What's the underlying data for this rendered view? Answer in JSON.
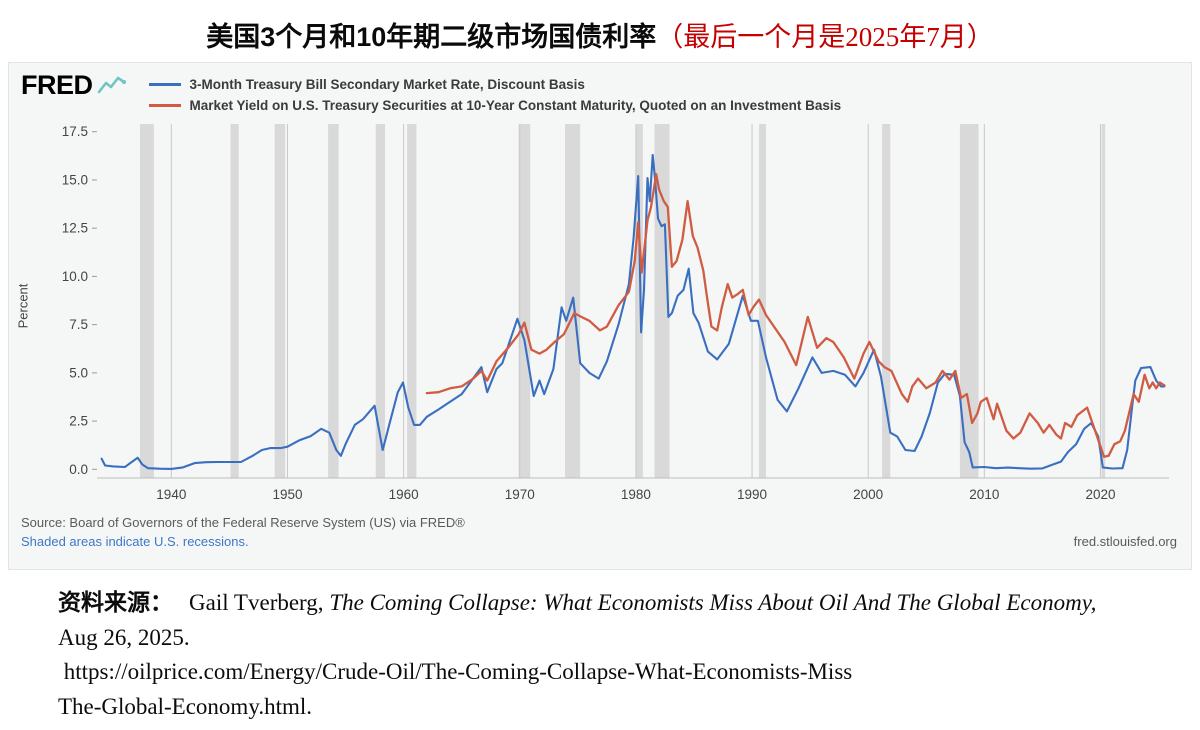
{
  "page_title": {
    "main": "美国3个月和10年期二级市场国债利率",
    "note": "（最后一个月是2025年7月）"
  },
  "fred": {
    "logo_text": "FRED",
    "footer_source": "Source: Board of Governors of the Federal Reserve System (US) via FRED®",
    "footer_recessions": "Shaded areas indicate U.S. recessions.",
    "footer_site": "fred.stlouisfed.org"
  },
  "chart_data": {
    "type": "line",
    "title": "",
    "xlabel": "",
    "ylabel": "Percent",
    "xlim": [
      1933.6,
      2025.9
    ],
    "ylim": [
      -0.45,
      17.9
    ],
    "x_ticks": [
      1940,
      1950,
      1960,
      1970,
      1980,
      1990,
      2000,
      2010,
      2020
    ],
    "y_ticks": [
      "0.0",
      "2.5",
      "5.0",
      "7.5",
      "10.0",
      "12.5",
      "15.0",
      "17.5"
    ],
    "legend_position": "top",
    "grid": "vertical-only",
    "colors": {
      "grid": "#c9c9c9",
      "recession": "#d9d9d9",
      "axis_text": "#444444"
    },
    "recessions": [
      [
        1937.3,
        1938.5
      ],
      [
        1945.1,
        1945.8
      ],
      [
        1948.9,
        1949.8
      ],
      [
        1953.5,
        1954.4
      ],
      [
        1957.6,
        1958.4
      ],
      [
        1960.3,
        1961.1
      ],
      [
        1969.9,
        1970.9
      ],
      [
        1973.9,
        1975.2
      ],
      [
        1980.0,
        1980.6
      ],
      [
        1981.6,
        1982.9
      ],
      [
        1990.6,
        1991.2
      ],
      [
        2001.2,
        2001.9
      ],
      [
        2007.9,
        2009.5
      ],
      [
        2020.1,
        2020.4
      ]
    ],
    "series": [
      {
        "name": "3-Month Treasury Bill Secondary Market Rate, Discount Basis",
        "color": "#3a6fc0",
        "width": 2.1,
        "points": [
          [
            1934,
            0.55
          ],
          [
            1934.3,
            0.2
          ],
          [
            1935,
            0.15
          ],
          [
            1936,
            0.12
          ],
          [
            1937.1,
            0.6
          ],
          [
            1937.5,
            0.25
          ],
          [
            1938,
            0.06
          ],
          [
            1939,
            0.03
          ],
          [
            1940,
            0.02
          ],
          [
            1941,
            0.1
          ],
          [
            1942,
            0.32
          ],
          [
            1943,
            0.37
          ],
          [
            1944,
            0.38
          ],
          [
            1945,
            0.38
          ],
          [
            1946,
            0.38
          ],
          [
            1947,
            0.7
          ],
          [
            1947.8,
            1.0
          ],
          [
            1948.5,
            1.1
          ],
          [
            1949.4,
            1.1
          ],
          [
            1950,
            1.17
          ],
          [
            1951,
            1.5
          ],
          [
            1952,
            1.72
          ],
          [
            1952.9,
            2.1
          ],
          [
            1953.6,
            1.9
          ],
          [
            1954.2,
            1.0
          ],
          [
            1954.6,
            0.7
          ],
          [
            1955,
            1.3
          ],
          [
            1955.8,
            2.3
          ],
          [
            1956.5,
            2.6
          ],
          [
            1957.5,
            3.3
          ],
          [
            1958.2,
            1.0
          ],
          [
            1958.8,
            2.4
          ],
          [
            1959.5,
            4.0
          ],
          [
            1959.95,
            4.5
          ],
          [
            1960.4,
            3.2
          ],
          [
            1960.9,
            2.3
          ],
          [
            1961.4,
            2.3
          ],
          [
            1962,
            2.72
          ],
          [
            1963,
            3.1
          ],
          [
            1964,
            3.5
          ],
          [
            1965,
            3.9
          ],
          [
            1966.7,
            5.3
          ],
          [
            1967.2,
            4.0
          ],
          [
            1968,
            5.2
          ],
          [
            1968.5,
            5.5
          ],
          [
            1969.8,
            7.8
          ],
          [
            1970.4,
            6.7
          ],
          [
            1971.2,
            3.8
          ],
          [
            1971.7,
            4.6
          ],
          [
            1972.1,
            3.9
          ],
          [
            1972.9,
            5.2
          ],
          [
            1973.6,
            8.4
          ],
          [
            1974,
            7.7
          ],
          [
            1974.6,
            8.9
          ],
          [
            1975.2,
            5.5
          ],
          [
            1976,
            5.0
          ],
          [
            1976.8,
            4.7
          ],
          [
            1977.5,
            5.6
          ],
          [
            1978.5,
            7.5
          ],
          [
            1979.4,
            9.6
          ],
          [
            1979.8,
            12.0
          ],
          [
            1980.2,
            15.2
          ],
          [
            1980.45,
            7.1
          ],
          [
            1980.7,
            9.3
          ],
          [
            1981,
            15.1
          ],
          [
            1981.2,
            13.9
          ],
          [
            1981.45,
            16.3
          ],
          [
            1981.65,
            15.0
          ],
          [
            1981.9,
            13.0
          ],
          [
            1982.2,
            12.6
          ],
          [
            1982.5,
            12.7
          ],
          [
            1982.8,
            7.9
          ],
          [
            1983.1,
            8.1
          ],
          [
            1983.6,
            9.0
          ],
          [
            1984.1,
            9.3
          ],
          [
            1984.55,
            10.4
          ],
          [
            1984.95,
            8.1
          ],
          [
            1985.4,
            7.6
          ],
          [
            1986.2,
            6.1
          ],
          [
            1987,
            5.7
          ],
          [
            1988,
            6.5
          ],
          [
            1989.2,
            9.0
          ],
          [
            1989.9,
            7.7
          ],
          [
            1990.5,
            7.7
          ],
          [
            1991.2,
            5.8
          ],
          [
            1992.2,
            3.6
          ],
          [
            1993,
            3.0
          ],
          [
            1994,
            4.2
          ],
          [
            1995.2,
            5.8
          ],
          [
            1996,
            5.0
          ],
          [
            1997,
            5.1
          ],
          [
            1998,
            4.9
          ],
          [
            1998.9,
            4.3
          ],
          [
            1999.6,
            5.0
          ],
          [
            2000.5,
            6.2
          ],
          [
            2001.1,
            4.8
          ],
          [
            2001.9,
            1.9
          ],
          [
            2002.5,
            1.7
          ],
          [
            2003.2,
            1.0
          ],
          [
            2004,
            0.95
          ],
          [
            2004.6,
            1.7
          ],
          [
            2005.3,
            2.9
          ],
          [
            2006,
            4.5
          ],
          [
            2006.6,
            4.95
          ],
          [
            2007.4,
            4.9
          ],
          [
            2007.9,
            3.8
          ],
          [
            2008.3,
            1.4
          ],
          [
            2008.7,
            0.9
          ],
          [
            2009,
            0.1
          ],
          [
            2010,
            0.12
          ],
          [
            2011,
            0.06
          ],
          [
            2012,
            0.09
          ],
          [
            2013,
            0.06
          ],
          [
            2014,
            0.03
          ],
          [
            2015,
            0.05
          ],
          [
            2015.9,
            0.25
          ],
          [
            2016.6,
            0.4
          ],
          [
            2017.2,
            0.9
          ],
          [
            2017.9,
            1.3
          ],
          [
            2018.6,
            2.1
          ],
          [
            2019.2,
            2.4
          ],
          [
            2019.8,
            1.7
          ],
          [
            2020.2,
            0.1
          ],
          [
            2021,
            0.04
          ],
          [
            2021.9,
            0.06
          ],
          [
            2022.3,
            1.0
          ],
          [
            2022.7,
            3.1
          ],
          [
            2023,
            4.6
          ],
          [
            2023.5,
            5.25
          ],
          [
            2024.3,
            5.3
          ],
          [
            2024.8,
            4.6
          ],
          [
            2025.2,
            4.3
          ],
          [
            2025.5,
            4.3
          ]
        ]
      },
      {
        "name": "Market Yield on U.S. Treasury Securities at 10-Year Constant Maturity, Quoted on an Investment Basis",
        "color": "#d05c43",
        "width": 2.3,
        "points": [
          [
            1962,
            3.95
          ],
          [
            1963,
            4.0
          ],
          [
            1964,
            4.2
          ],
          [
            1965,
            4.3
          ],
          [
            1966,
            4.7
          ],
          [
            1966.7,
            5.1
          ],
          [
            1967.2,
            4.6
          ],
          [
            1968,
            5.6
          ],
          [
            1969,
            6.3
          ],
          [
            1969.9,
            7.0
          ],
          [
            1970.4,
            7.6
          ],
          [
            1971,
            6.2
          ],
          [
            1971.7,
            6.0
          ],
          [
            1972.3,
            6.2
          ],
          [
            1973,
            6.6
          ],
          [
            1973.8,
            7.0
          ],
          [
            1974.7,
            8.1
          ],
          [
            1975.3,
            7.9
          ],
          [
            1976,
            7.7
          ],
          [
            1976.9,
            7.2
          ],
          [
            1977.5,
            7.4
          ],
          [
            1978.5,
            8.5
          ],
          [
            1979.4,
            9.2
          ],
          [
            1979.9,
            10.8
          ],
          [
            1980.2,
            12.8
          ],
          [
            1980.5,
            10.2
          ],
          [
            1981,
            12.9
          ],
          [
            1981.3,
            13.6
          ],
          [
            1981.75,
            15.3
          ],
          [
            1982,
            14.5
          ],
          [
            1982.4,
            13.9
          ],
          [
            1982.75,
            13.6
          ],
          [
            1983.1,
            10.5
          ],
          [
            1983.5,
            10.8
          ],
          [
            1984,
            11.9
          ],
          [
            1984.45,
            13.9
          ],
          [
            1984.9,
            12.1
          ],
          [
            1985.3,
            11.5
          ],
          [
            1985.8,
            10.3
          ],
          [
            1986.1,
            9.0
          ],
          [
            1986.5,
            7.4
          ],
          [
            1987,
            7.2
          ],
          [
            1987.4,
            8.4
          ],
          [
            1987.9,
            9.6
          ],
          [
            1988.3,
            8.9
          ],
          [
            1988.8,
            9.1
          ],
          [
            1989.2,
            9.3
          ],
          [
            1989.7,
            8.0
          ],
          [
            1990.1,
            8.4
          ],
          [
            1990.6,
            8.8
          ],
          [
            1991.2,
            8.0
          ],
          [
            1992,
            7.3
          ],
          [
            1992.8,
            6.6
          ],
          [
            1993.8,
            5.4
          ],
          [
            1994.8,
            7.9
          ],
          [
            1995.6,
            6.3
          ],
          [
            1996.4,
            6.8
          ],
          [
            1997,
            6.6
          ],
          [
            1997.9,
            5.8
          ],
          [
            1998.8,
            4.7
          ],
          [
            1999.6,
            6.0
          ],
          [
            2000.1,
            6.6
          ],
          [
            2000.9,
            5.6
          ],
          [
            2001.4,
            5.3
          ],
          [
            2002,
            5.1
          ],
          [
            2002.9,
            3.9
          ],
          [
            2003.4,
            3.5
          ],
          [
            2003.8,
            4.3
          ],
          [
            2004.3,
            4.7
          ],
          [
            2005,
            4.2
          ],
          [
            2005.8,
            4.5
          ],
          [
            2006.4,
            5.1
          ],
          [
            2007,
            4.65
          ],
          [
            2007.5,
            5.1
          ],
          [
            2008,
            3.7
          ],
          [
            2008.5,
            3.9
          ],
          [
            2008.95,
            2.4
          ],
          [
            2009.4,
            2.9
          ],
          [
            2009.7,
            3.5
          ],
          [
            2010.2,
            3.7
          ],
          [
            2010.8,
            2.6
          ],
          [
            2011.1,
            3.4
          ],
          [
            2011.9,
            2.0
          ],
          [
            2012.5,
            1.6
          ],
          [
            2013.1,
            1.9
          ],
          [
            2013.9,
            2.9
          ],
          [
            2014.6,
            2.4
          ],
          [
            2015.1,
            1.9
          ],
          [
            2015.6,
            2.3
          ],
          [
            2016.2,
            1.8
          ],
          [
            2016.6,
            1.6
          ],
          [
            2016.95,
            2.4
          ],
          [
            2017.5,
            2.2
          ],
          [
            2018,
            2.8
          ],
          [
            2018.85,
            3.2
          ],
          [
            2019.6,
            1.9
          ],
          [
            2020.3,
            0.65
          ],
          [
            2020.7,
            0.7
          ],
          [
            2021.2,
            1.3
          ],
          [
            2021.7,
            1.45
          ],
          [
            2022.1,
            2.0
          ],
          [
            2022.5,
            3.0
          ],
          [
            2022.85,
            3.9
          ],
          [
            2023.3,
            3.5
          ],
          [
            2023.8,
            4.9
          ],
          [
            2024.2,
            4.2
          ],
          [
            2024.5,
            4.5
          ],
          [
            2024.8,
            4.2
          ],
          [
            2025.1,
            4.5
          ],
          [
            2025.5,
            4.35
          ]
        ]
      }
    ]
  },
  "citation": {
    "label": "资料来源：",
    "author": "Gail Tverberg, ",
    "title_italic": "The Coming Collapse: What Economists Miss About Oil And The Global Economy,",
    "date": " Aug 26, 2025.",
    "url_line1": " https://oilprice.com/Energy/Crude-Oil/The-Coming-Collapse-What-Economists-Miss",
    "url_line2": "The-Global-Economy.html."
  }
}
